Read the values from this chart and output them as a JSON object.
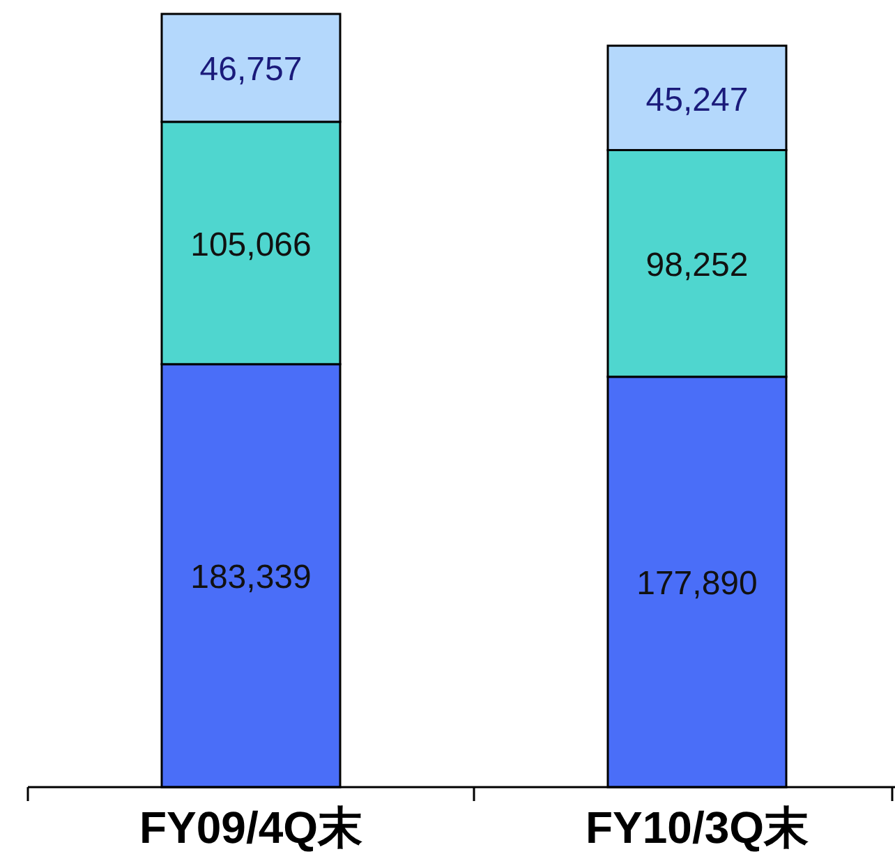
{
  "chart_data": {
    "type": "bar",
    "stacked": true,
    "categories": [
      "FY09/4Q末",
      "FY10/3Q末"
    ],
    "series": [
      {
        "color": "#4a6ef8",
        "values": [
          183339,
          177890
        ],
        "value_labels": [
          "183,339",
          "177,890"
        ]
      },
      {
        "color": "#4fd6cf",
        "values": [
          105066,
          98252
        ],
        "value_labels": [
          "105,066",
          "98,252"
        ]
      },
      {
        "color": "#b4d8fc",
        "values": [
          46757,
          45247
        ],
        "value_labels": [
          "46,757",
          "45,247"
        ]
      }
    ]
  }
}
